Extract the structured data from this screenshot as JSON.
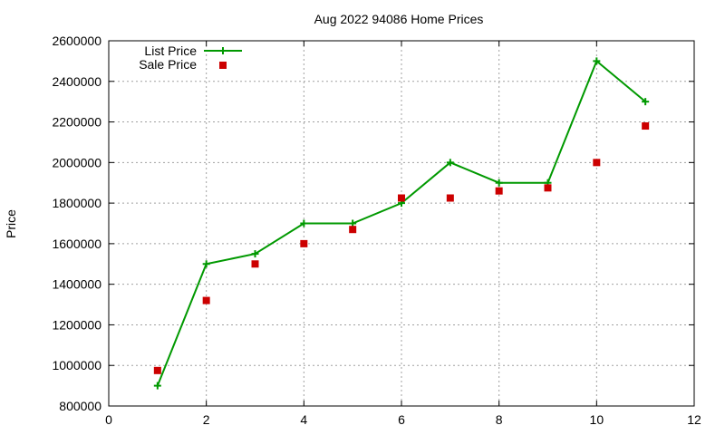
{
  "chart_data": {
    "type": "line",
    "title": "Aug 2022 94086 Home Prices",
    "xlabel": "",
    "ylabel": "Price",
    "xlim": [
      0,
      12
    ],
    "ylim": [
      800000,
      2600000
    ],
    "xticks": [
      0,
      2,
      4,
      6,
      8,
      10,
      12
    ],
    "yticks": [
      800000,
      1000000,
      1200000,
      1400000,
      1600000,
      1800000,
      2000000,
      2200000,
      2400000,
      2600000
    ],
    "grid": true,
    "legend_position": "top-left",
    "series": [
      {
        "name": "List Price",
        "style": "line-with-plus-markers",
        "color": "#009900",
        "x": [
          1,
          2,
          3,
          4,
          5,
          6,
          7,
          8,
          9,
          10,
          11
        ],
        "values": [
          900000,
          1500000,
          1550000,
          1700000,
          1700000,
          1800000,
          2000000,
          1900000,
          1900000,
          2500000,
          2300000
        ]
      },
      {
        "name": "Sale Price",
        "style": "square-markers",
        "color": "#cc0000",
        "x": [
          1,
          2,
          3,
          4,
          5,
          6,
          7,
          8,
          9,
          10,
          11
        ],
        "values": [
          975000,
          1320000,
          1500000,
          1600000,
          1670000,
          1825000,
          1825000,
          1860000,
          1875000,
          2000000,
          2180000
        ]
      }
    ]
  }
}
